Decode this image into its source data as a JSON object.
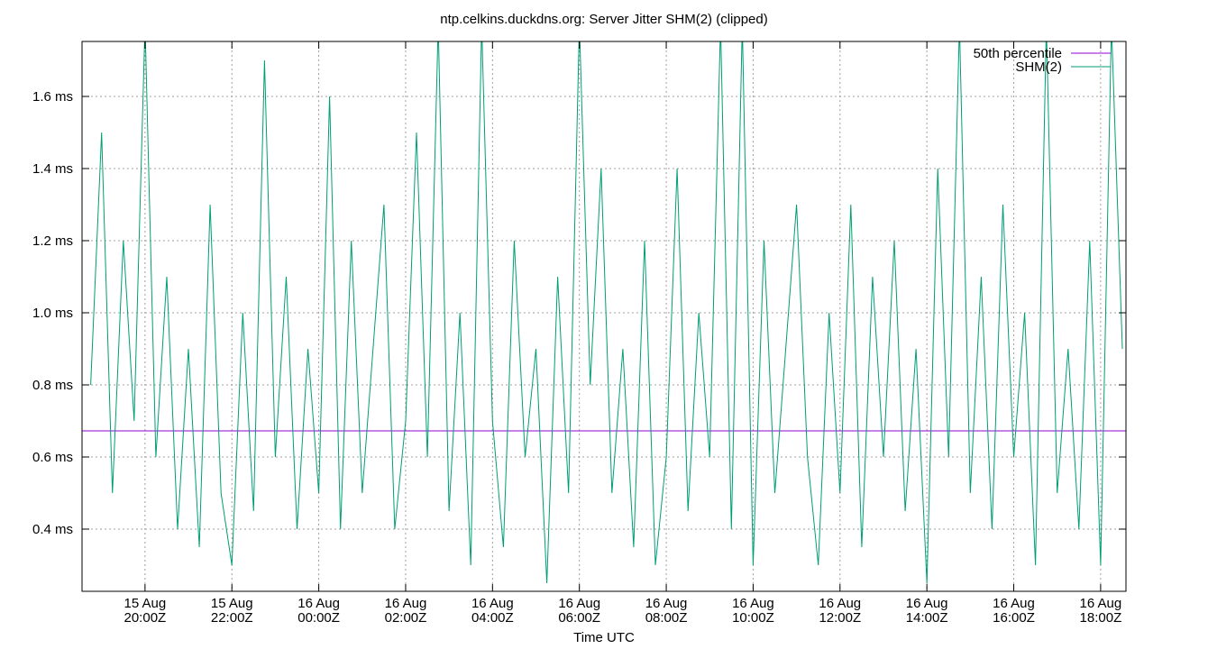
{
  "chart_data": {
    "type": "line",
    "title": "ntp.celkins.duckdns.org: Server Jitter SHM(2) (clipped)",
    "x_label": "Time UTC",
    "xlim": [
      "15 Aug 18:33Z",
      "16 Aug 18:35Z"
    ],
    "xticks": [
      {
        "value": "15 Aug 20:00Z",
        "label": [
          "15 Aug",
          "20:00Z"
        ]
      },
      {
        "value": "15 Aug 22:00Z",
        "label": [
          "15 Aug",
          "22:00Z"
        ]
      },
      {
        "value": "16 Aug 00:00Z",
        "label": [
          "16 Aug",
          "00:00Z"
        ]
      },
      {
        "value": "16 Aug 02:00Z",
        "label": [
          "16 Aug",
          "02:00Z"
        ]
      },
      {
        "value": "16 Aug 04:00Z",
        "label": [
          "16 Aug",
          "04:00Z"
        ]
      },
      {
        "value": "16 Aug 06:00Z",
        "label": [
          "16 Aug",
          "06:00Z"
        ]
      },
      {
        "value": "16 Aug 08:00Z",
        "label": [
          "16 Aug",
          "08:00Z"
        ]
      },
      {
        "value": "16 Aug 10:00Z",
        "label": [
          "16 Aug",
          "10:00Z"
        ]
      },
      {
        "value": "16 Aug 12:00Z",
        "label": [
          "16 Aug",
          "12:00Z"
        ]
      },
      {
        "value": "16 Aug 14:00Z",
        "label": [
          "16 Aug",
          "14:00Z"
        ]
      },
      {
        "value": "16 Aug 16:00Z",
        "label": [
          "16 Aug",
          "16:00Z"
        ]
      },
      {
        "value": "16 Aug 18:00Z",
        "label": [
          "16 Aug",
          "18:00Z"
        ]
      }
    ],
    "ylim": [
      0.2275,
      1.7525
    ],
    "yticks": [
      {
        "value": 0.4,
        "label": "0.4 ms"
      },
      {
        "value": 0.6,
        "label": "0.6 ms"
      },
      {
        "value": 0.8,
        "label": "0.8 ms"
      },
      {
        "value": 1.0,
        "label": "1.0 ms"
      },
      {
        "value": 1.2,
        "label": "1.2 ms"
      },
      {
        "value": 1.4,
        "label": "1.4 ms"
      },
      {
        "value": 1.6,
        "label": "1.6 ms"
      }
    ],
    "grid": true,
    "legend": "top-right",
    "series": [
      {
        "name": "50th percentile",
        "color": "#9400d3",
        "x": [
          "15 Aug 18:33Z",
          "16 Aug 18:35Z"
        ],
        "values": [
          0.6725,
          0.6725
        ]
      },
      {
        "name": "SHM(2)",
        "color": "#009e73",
        "x": [
          "15 Aug 18:45Z",
          "15 Aug 19:00Z",
          "15 Aug 19:15Z",
          "15 Aug 19:30Z",
          "15 Aug 19:45Z",
          "15 Aug 20:00Z",
          "15 Aug 20:15Z",
          "15 Aug 20:30Z",
          "15 Aug 20:45Z",
          "15 Aug 21:00Z",
          "15 Aug 21:15Z",
          "15 Aug 21:30Z",
          "15 Aug 21:45Z",
          "15 Aug 22:00Z",
          "15 Aug 22:15Z",
          "15 Aug 22:30Z",
          "15 Aug 22:45Z",
          "15 Aug 23:00Z",
          "15 Aug 23:15Z",
          "15 Aug 23:30Z",
          "15 Aug 23:45Z",
          "16 Aug 00:00Z",
          "16 Aug 00:15Z",
          "16 Aug 00:30Z",
          "16 Aug 00:45Z",
          "16 Aug 01:00Z",
          "16 Aug 01:15Z",
          "16 Aug 01:30Z",
          "16 Aug 01:45Z",
          "16 Aug 02:00Z",
          "16 Aug 02:15Z",
          "16 Aug 02:30Z",
          "16 Aug 02:45Z",
          "16 Aug 03:00Z",
          "16 Aug 03:15Z",
          "16 Aug 03:30Z",
          "16 Aug 03:45Z",
          "16 Aug 04:00Z",
          "16 Aug 04:15Z",
          "16 Aug 04:30Z",
          "16 Aug 04:45Z",
          "16 Aug 05:00Z",
          "16 Aug 05:15Z",
          "16 Aug 05:30Z",
          "16 Aug 05:45Z",
          "16 Aug 06:00Z",
          "16 Aug 06:15Z",
          "16 Aug 06:30Z",
          "16 Aug 06:45Z",
          "16 Aug 07:00Z",
          "16 Aug 07:15Z",
          "16 Aug 07:30Z",
          "16 Aug 07:45Z",
          "16 Aug 08:00Z",
          "16 Aug 08:15Z",
          "16 Aug 08:30Z",
          "16 Aug 08:45Z",
          "16 Aug 09:00Z",
          "16 Aug 09:15Z",
          "16 Aug 09:30Z",
          "16 Aug 09:45Z",
          "16 Aug 10:00Z",
          "16 Aug 10:15Z",
          "16 Aug 10:30Z",
          "16 Aug 10:45Z",
          "16 Aug 11:00Z",
          "16 Aug 11:15Z",
          "16 Aug 11:30Z",
          "16 Aug 11:45Z",
          "16 Aug 12:00Z",
          "16 Aug 12:15Z",
          "16 Aug 12:30Z",
          "16 Aug 12:45Z",
          "16 Aug 13:00Z",
          "16 Aug 13:15Z",
          "16 Aug 13:30Z",
          "16 Aug 13:45Z",
          "16 Aug 14:00Z",
          "16 Aug 14:15Z",
          "16 Aug 14:30Z",
          "16 Aug 14:45Z",
          "16 Aug 15:00Z",
          "16 Aug 15:15Z",
          "16 Aug 15:30Z",
          "16 Aug 15:45Z",
          "16 Aug 16:00Z",
          "16 Aug 16:15Z",
          "16 Aug 16:30Z",
          "16 Aug 16:45Z",
          "16 Aug 17:00Z",
          "16 Aug 17:15Z",
          "16 Aug 17:30Z",
          "16 Aug 17:45Z",
          "16 Aug 18:00Z",
          "16 Aug 18:15Z",
          "16 Aug 18:30Z"
        ],
        "values": [
          0.8,
          1.5,
          0.5,
          1.2,
          0.7,
          1.8,
          0.6,
          1.1,
          0.4,
          0.9,
          0.35,
          1.3,
          0.5,
          0.3,
          1.0,
          0.45,
          1.7,
          0.6,
          1.1,
          0.4,
          0.9,
          0.5,
          1.6,
          0.4,
          1.2,
          0.5,
          0.9,
          1.3,
          0.4,
          0.7,
          1.5,
          0.6,
          1.8,
          0.45,
          1.0,
          0.3,
          1.8,
          0.7,
          0.35,
          1.2,
          0.6,
          0.9,
          0.25,
          1.1,
          0.5,
          1.8,
          0.8,
          1.4,
          0.5,
          0.9,
          0.35,
          1.2,
          0.3,
          0.6,
          1.4,
          0.45,
          1.0,
          0.6,
          1.8,
          0.4,
          1.8,
          0.3,
          1.2,
          0.5,
          0.9,
          1.3,
          0.6,
          0.3,
          1.0,
          0.5,
          1.3,
          0.35,
          1.1,
          0.6,
          1.2,
          0.45,
          0.9,
          0.25,
          1.4,
          0.6,
          1.8,
          0.5,
          1.1,
          0.4,
          1.3,
          0.6,
          1.0,
          0.3,
          1.8,
          0.5,
          0.9,
          0.4,
          1.2,
          0.3,
          1.8,
          0.9
        ]
      }
    ]
  }
}
